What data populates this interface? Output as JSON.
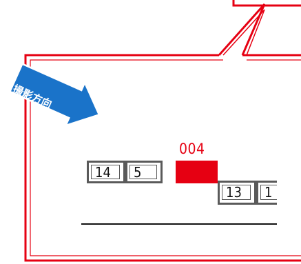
{
  "colors": {
    "frame": "#e60012",
    "arrow": "#1a73c9",
    "seat_border": "#5a5a5a",
    "highlight": "#e60012",
    "line": "#111111"
  },
  "arrow": {
    "label": "撮影方向"
  },
  "highlighted_seat": {
    "label": "004"
  },
  "seats": {
    "seat_14": "14",
    "seat_5": "5",
    "seat_13": "13",
    "seat_partial": "1"
  }
}
